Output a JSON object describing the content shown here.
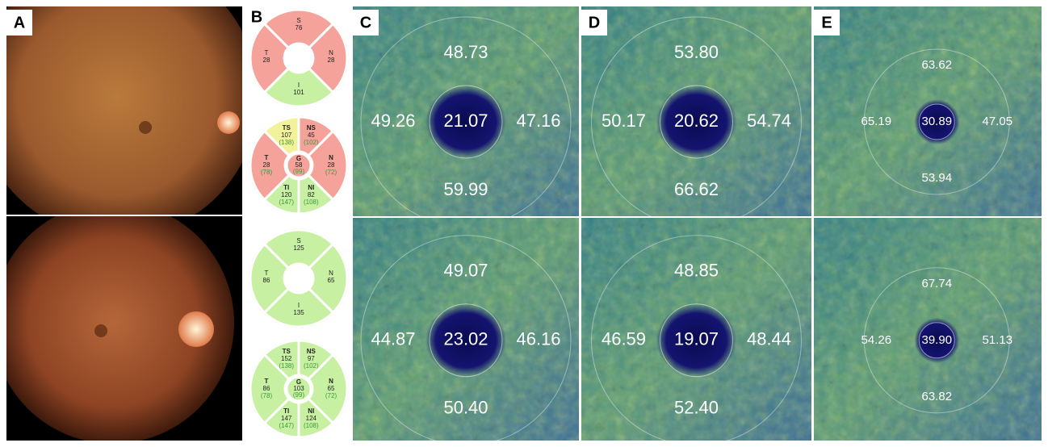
{
  "panelA": {
    "label": "A"
  },
  "panelB": {
    "label": "B",
    "diagrams": [
      {
        "sectors": [
          {
            "name": "S",
            "value": "76",
            "color": "#f4a29a"
          },
          {
            "name": "N",
            "value": "28",
            "color": "#f4a29a"
          },
          {
            "name": "I",
            "value": "101",
            "color": "#c8f0a2"
          },
          {
            "name": "T",
            "value": "28",
            "color": "#f4a29a"
          }
        ]
      },
      {
        "sectors": [
          {
            "name": "TS",
            "value": "107",
            "reference": "(138)",
            "color": "#f2f29a"
          },
          {
            "name": "NS",
            "value": "45",
            "reference": "(102)",
            "color": "#f4a29a"
          },
          {
            "name": "N",
            "value": "28",
            "reference": "(72)",
            "color": "#f4a29a"
          },
          {
            "name": "NI",
            "value": "82",
            "reference": "(108)",
            "color": "#c8f0a2"
          },
          {
            "name": "TI",
            "value": "120",
            "reference": "(147)",
            "color": "#c8f0a2"
          },
          {
            "name": "T",
            "value": "28",
            "reference": "(78)",
            "color": "#f4a29a"
          }
        ],
        "center": {
          "name": "G",
          "value": "58",
          "reference": "(99)",
          "color": "#f4a29a"
        }
      },
      {
        "sectors": [
          {
            "name": "S",
            "value": "125",
            "color": "#c8f0a2"
          },
          {
            "name": "N",
            "value": "65",
            "color": "#c8f0a2"
          },
          {
            "name": "I",
            "value": "135",
            "color": "#c8f0a2"
          },
          {
            "name": "T",
            "value": "86",
            "color": "#c8f0a2"
          }
        ]
      },
      {
        "sectors": [
          {
            "name": "TS",
            "value": "152",
            "reference": "(138)",
            "color": "#c8f0a2"
          },
          {
            "name": "NS",
            "value": "97",
            "reference": "(102)",
            "color": "#c8f0a2"
          },
          {
            "name": "N",
            "value": "65",
            "reference": "(72)",
            "color": "#c8f0a2"
          },
          {
            "name": "NI",
            "value": "124",
            "reference": "(108)",
            "color": "#c8f0a2"
          },
          {
            "name": "TI",
            "value": "147",
            "reference": "(147)",
            "color": "#c8f0a2"
          },
          {
            "name": "T",
            "value": "86",
            "reference": "(78)",
            "color": "#c8f0a2"
          }
        ],
        "center": {
          "name": "G",
          "value": "103",
          "reference": "(99)",
          "color": "#c8f0a2"
        }
      }
    ]
  },
  "panelC": {
    "label": "C",
    "images": [
      {
        "top": "48.73",
        "left": "49.26",
        "center": "21.07",
        "right": "47.16",
        "bottom": "59.99"
      },
      {
        "top": "49.07",
        "left": "44.87",
        "center": "23.02",
        "right": "46.16",
        "bottom": "50.40"
      }
    ]
  },
  "panelD": {
    "label": "D",
    "images": [
      {
        "top": "53.80",
        "left": "50.17",
        "center": "20.62",
        "right": "54.74",
        "bottom": "66.62"
      },
      {
        "top": "48.85",
        "left": "46.59",
        "center": "19.07",
        "right": "48.44",
        "bottom": "52.40"
      }
    ]
  },
  "panelE": {
    "label": "E",
    "images": [
      {
        "top": "63.62",
        "left": "65.19",
        "center": "30.89",
        "right": "47.05",
        "bottom": "53.94"
      },
      {
        "top": "67.74",
        "left": "54.26",
        "center": "39.90",
        "right": "51.13",
        "bottom": "63.82"
      }
    ]
  }
}
